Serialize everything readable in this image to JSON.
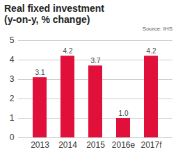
{
  "chart_data": {
    "type": "bar",
    "title": "Real fixed investment",
    "subtitle": "(y-on-y, % change)",
    "source": "Source: IHS",
    "categories": [
      "2013",
      "2014",
      "2015",
      "2016e",
      "2017f"
    ],
    "values": [
      3.1,
      4.2,
      3.7,
      1.0,
      4.2
    ],
    "value_labels": [
      "3.1",
      "4.2",
      "3.7",
      "1.0",
      "4.2"
    ],
    "data_labels": true,
    "color": "#e0103a",
    "ylim": [
      0,
      5
    ],
    "yticks": [
      0,
      1,
      2,
      3,
      4,
      5
    ],
    "grid": true
  }
}
